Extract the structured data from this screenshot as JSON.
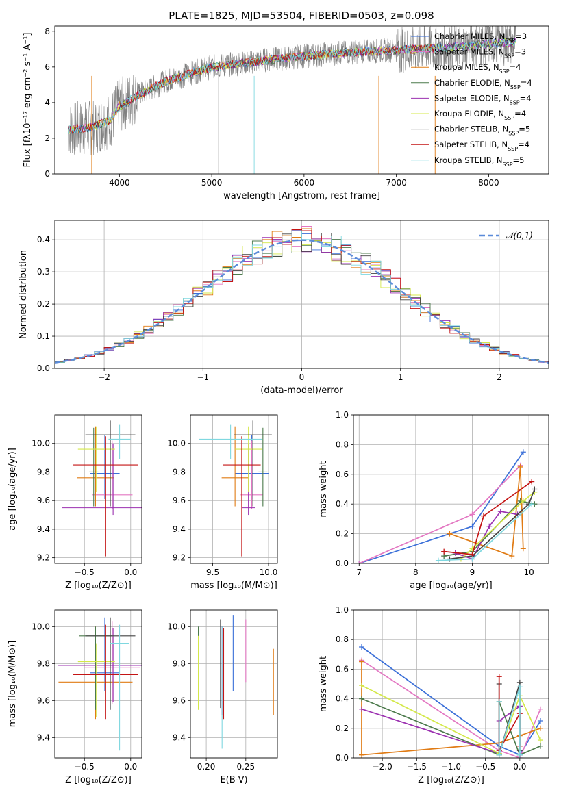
{
  "figure": {
    "title": "PLATE=1825, MJD=53504, FIBERID=0503, z=0.098"
  },
  "models": [
    {
      "name": "Chabrier MILES",
      "nssp": "3",
      "color": "#3a6fd8"
    },
    {
      "name": "Salpeter MILES",
      "nssp": "3",
      "color": "#e377c2"
    },
    {
      "name": "Kroupa MILES",
      "nssp": "4",
      "color": "#e07b14"
    },
    {
      "name": "Chabrier ELODIE",
      "nssp": "4",
      "color": "#4c7a4c"
    },
    {
      "name": "Salpeter ELODIE",
      "nssp": "4",
      "color": "#9b30b0"
    },
    {
      "name": "Kroupa ELODIE",
      "nssp": "4",
      "color": "#d4e84a"
    },
    {
      "name": "Chabrier STELIB",
      "nssp": "5",
      "color": "#444444"
    },
    {
      "name": "Salpeter STELIB",
      "nssp": "4",
      "color": "#c41414"
    },
    {
      "name": "Kroupa STELIB",
      "nssp": "5",
      "color": "#7fd8e0"
    }
  ],
  "nssp_label_prefix": "N",
  "nssp_label_sub": "SSP",
  "chart_data": [
    {
      "id": "spectrum",
      "type": "line",
      "xlabel": "wavelength [Angstrom, rest frame]",
      "ylabel": "Flux [fλ10⁻¹⁷ erg cm⁻² s⁻¹ A⁻¹]",
      "xlim": [
        3300,
        8650
      ],
      "ylim": [
        0,
        8.3
      ],
      "xticks": [
        4000,
        5000,
        6000,
        7000,
        8000
      ],
      "yticks": [
        0,
        2,
        4,
        6,
        8
      ],
      "legend": "top-right",
      "observed_continuum": [
        [
          3450,
          2.5
        ],
        [
          3700,
          2.6
        ],
        [
          3900,
          3.0
        ],
        [
          4000,
          3.8
        ],
        [
          4200,
          4.4
        ],
        [
          4500,
          5.2
        ],
        [
          4800,
          5.7
        ],
        [
          5000,
          6.0
        ],
        [
          5300,
          6.2
        ],
        [
          5600,
          6.4
        ],
        [
          6000,
          6.6
        ],
        [
          6400,
          6.8
        ],
        [
          6800,
          6.9
        ],
        [
          7200,
          7.0
        ],
        [
          7600,
          7.1
        ],
        [
          8000,
          7.3
        ],
        [
          8300,
          7.4
        ]
      ]
    },
    {
      "id": "residuals",
      "type": "bar",
      "xlabel": "(data-model)/error",
      "ylabel": "Normed distribution",
      "xlim": [
        -2.5,
        2.5
      ],
      "ylim": [
        0,
        0.46
      ],
      "xticks": [
        -2,
        -1,
        0,
        1,
        2
      ],
      "yticks": [
        0.0,
        0.1,
        0.2,
        0.3,
        0.4
      ],
      "legend": "top-right",
      "reference_curve": "𝒩(0,1)",
      "reference_color": "#5b8bd9"
    },
    {
      "id": "age-vs-Z",
      "type": "scatter",
      "xlabel": "Z [log₁₀(Z/Z⊙)]",
      "ylabel": "age  [log₁₀(age/yr)]",
      "xlim": [
        -0.82,
        0.12
      ],
      "ylim": [
        9.16,
        10.2
      ],
      "xticks": [
        -0.5,
        0.0
      ],
      "yticks": [
        9.2,
        9.4,
        9.6,
        9.8,
        10.0
      ],
      "points": [
        {
          "model": 0,
          "x": -0.28,
          "y": 9.79,
          "xerr": 0.16,
          "yerr": [
            0.18,
            0.27
          ]
        },
        {
          "model": 1,
          "x": -0.2,
          "y": 9.64,
          "xerr": 0.22,
          "yerr": [
            0.1,
            0.38
          ]
        },
        {
          "model": 2,
          "x": -0.38,
          "y": 9.76,
          "xerr": 0.2,
          "yerr": [
            0.2,
            0.36
          ]
        },
        {
          "model": 3,
          "x": -0.4,
          "y": 9.8,
          "xerr": 0.05,
          "yerr": [
            0.24,
            0.31
          ]
        },
        {
          "model": 4,
          "x": -0.19,
          "y": 9.55,
          "xerr": 0.55,
          "yerr": [
            0.05,
            0.45
          ]
        },
        {
          "model": 5,
          "x": -0.37,
          "y": 9.96,
          "xerr": 0.2,
          "yerr": [
            0.3,
            0.16
          ]
        },
        {
          "model": 6,
          "x": -0.22,
          "y": 10.06,
          "xerr": 0.27,
          "yerr": [
            0.5,
            0.1
          ]
        },
        {
          "model": 7,
          "x": -0.27,
          "y": 9.85,
          "xerr": 0.35,
          "yerr": [
            0.64,
            0.2
          ]
        },
        {
          "model": 8,
          "x": -0.12,
          "y": 10.03,
          "xerr": 0.12,
          "yerr": [
            0.14,
            0.1
          ]
        }
      ]
    },
    {
      "id": "age-vs-mass",
      "type": "scatter",
      "xlabel": "mass [log₁₀(M/M⊙)]",
      "ylabel": "",
      "xlim": [
        9.3,
        10.08
      ],
      "ylim": [
        9.16,
        10.2
      ],
      "xticks": [
        9.5,
        10.0
      ],
      "yticks": [
        9.2,
        9.4,
        9.6,
        9.8,
        10.0
      ],
      "points": [
        {
          "model": 0,
          "x": 9.85,
          "y": 9.79,
          "xerr": 0.15,
          "yerr": [
            0.18,
            0.27
          ]
        },
        {
          "model": 1,
          "x": 9.85,
          "y": 9.64,
          "xerr": 0.1,
          "yerr": [
            0.1,
            0.38
          ]
        },
        {
          "model": 2,
          "x": 9.7,
          "y": 9.76,
          "xerr": 0.12,
          "yerr": [
            0.2,
            0.36
          ]
        },
        {
          "model": 3,
          "x": 9.95,
          "y": 9.8,
          "xerr": 0.04,
          "yerr": [
            0.24,
            0.31
          ]
        },
        {
          "model": 4,
          "x": 9.82,
          "y": 9.55,
          "xerr": 0.06,
          "yerr": [
            0.05,
            0.45
          ]
        },
        {
          "model": 5,
          "x": 9.82,
          "y": 9.96,
          "xerr": 0.12,
          "yerr": [
            0.3,
            0.16
          ]
        },
        {
          "model": 6,
          "x": 9.86,
          "y": 10.06,
          "xerr": 0.17,
          "yerr": [
            0.5,
            0.1
          ]
        },
        {
          "model": 7,
          "x": 9.76,
          "y": 9.85,
          "xerr": 0.17,
          "yerr": [
            0.64,
            0.2
          ]
        },
        {
          "model": 8,
          "x": 9.66,
          "y": 10.03,
          "xerr": 0.28,
          "yerr": [
            0.14,
            0.1
          ]
        }
      ]
    },
    {
      "id": "weight-vs-age",
      "type": "line",
      "xlabel": "age  [log₁₀(age/yr)]",
      "ylabel": "mass weight",
      "xlim": [
        6.9,
        10.35
      ],
      "ylim": [
        0,
        1.0
      ],
      "xticks": [
        7,
        8,
        9,
        10
      ],
      "yticks": [
        0.0,
        0.2,
        0.4,
        0.6,
        0.8,
        1.0
      ],
      "series": [
        {
          "model": 0,
          "points": [
            [
              7.0,
              0.0
            ],
            [
              9.0,
              0.25
            ],
            [
              9.9,
              0.75
            ]
          ]
        },
        {
          "model": 1,
          "points": [
            [
              7.0,
              0.0
            ],
            [
              9.0,
              0.33
            ],
            [
              9.85,
              0.66
            ]
          ]
        },
        {
          "model": 2,
          "points": [
            [
              8.6,
              0.2
            ],
            [
              9.7,
              0.05
            ],
            [
              9.85,
              0.65
            ],
            [
              9.9,
              0.1
            ]
          ]
        },
        {
          "model": 3,
          "points": [
            [
              8.5,
              0.05
            ],
            [
              9.0,
              0.08
            ],
            [
              9.85,
              0.42
            ],
            [
              10.1,
              0.4
            ]
          ]
        },
        {
          "model": 4,
          "points": [
            [
              8.7,
              0.07
            ],
            [
              9.0,
              0.03
            ],
            [
              9.3,
              0.25
            ],
            [
              9.5,
              0.35
            ],
            [
              9.8,
              0.33
            ]
          ]
        },
        {
          "model": 5,
          "points": [
            [
              8.8,
              0.03
            ],
            [
              9.0,
              0.1
            ],
            [
              9.9,
              0.42
            ],
            [
              10.1,
              0.48
            ]
          ]
        },
        {
          "model": 6,
          "points": [
            [
              8.6,
              0.03
            ],
            [
              9.0,
              0.05
            ],
            [
              10.0,
              0.4
            ],
            [
              10.1,
              0.5
            ]
          ]
        },
        {
          "model": 7,
          "points": [
            [
              8.5,
              0.08
            ],
            [
              9.0,
              0.06
            ],
            [
              9.2,
              0.32
            ],
            [
              10.05,
              0.55
            ]
          ]
        },
        {
          "model": 8,
          "points": [
            [
              8.4,
              0.02
            ],
            [
              9.0,
              0.03
            ],
            [
              10.05,
              0.4
            ]
          ]
        }
      ]
    },
    {
      "id": "mass-vs-Z",
      "type": "scatter",
      "xlabel": "Z [log₁₀(Z/Z⊙)]",
      "ylabel": "mass [log₁₀(M/M⊙)]",
      "xlim": [
        -0.82,
        0.12
      ],
      "ylim": [
        9.29,
        10.09
      ],
      "xticks": [
        -0.5,
        0.0
      ],
      "yticks": [
        9.4,
        9.6,
        9.8,
        10.0
      ],
      "points": [
        {
          "model": 0,
          "x": -0.28,
          "y": 9.75,
          "xerr": 0.16,
          "yerr": [
            0.1,
            0.3
          ]
        },
        {
          "model": 1,
          "x": -0.2,
          "y": 9.78,
          "xerr": 0.3,
          "yerr": [
            0.2,
            0.25
          ]
        },
        {
          "model": 2,
          "x": -0.38,
          "y": 9.7,
          "xerr": 0.4,
          "yerr": [
            0.2,
            0.3
          ]
        },
        {
          "model": 3,
          "x": -0.38,
          "y": 9.95,
          "xerr": 0.18,
          "yerr": [
            0.4,
            0.05
          ]
        },
        {
          "model": 4,
          "x": -0.19,
          "y": 9.79,
          "xerr": 0.6,
          "yerr": [
            0.2,
            0.2
          ]
        },
        {
          "model": 5,
          "x": -0.37,
          "y": 9.81,
          "xerr": 0.2,
          "yerr": [
            0.3,
            0.1
          ]
        },
        {
          "model": 6,
          "x": -0.22,
          "y": 9.95,
          "xerr": 0.27,
          "yerr": [
            0.4,
            0.1
          ]
        },
        {
          "model": 7,
          "x": -0.27,
          "y": 9.74,
          "xerr": 0.35,
          "yerr": [
            0.24,
            0.27
          ]
        },
        {
          "model": 8,
          "x": -0.12,
          "y": 9.91,
          "xerr": 0.1,
          "yerr": [
            0.58,
            0.1
          ]
        }
      ]
    },
    {
      "id": "mass-vs-ebv",
      "type": "scatter",
      "xlabel": "E(B-V)",
      "ylabel": "",
      "xlim": [
        0.18,
        0.29
      ],
      "ylim": [
        9.29,
        10.09
      ],
      "xticks": [
        0.2,
        0.25
      ],
      "yticks": [
        9.4,
        9.6,
        9.8,
        10.0
      ],
      "points": [
        {
          "model": 0,
          "x": 0.234,
          "y": 9.8,
          "xerr": 0,
          "yerr": [
            0.15,
            0.26
          ]
        },
        {
          "model": 1,
          "x": 0.25,
          "y": 9.8,
          "xerr": 0,
          "yerr": [
            0.1,
            0.24
          ]
        },
        {
          "model": 2,
          "x": 0.285,
          "y": 9.7,
          "xerr": 0,
          "yerr": [
            0.18,
            0.18
          ]
        },
        {
          "model": 3,
          "x": 0.19,
          "y": 9.8,
          "xerr": 0,
          "yerr": [
            0.24,
            0.2
          ]
        },
        {
          "model": 4,
          "x": 0.22,
          "y": 9.75,
          "xerr": 0,
          "yerr": [
            0.23,
            0.25
          ]
        },
        {
          "model": 5,
          "x": 0.19,
          "y": 9.75,
          "xerr": 0,
          "yerr": [
            0.2,
            0.2
          ]
        },
        {
          "model": 6,
          "x": 0.218,
          "y": 9.8,
          "xerr": 0,
          "yerr": [
            0.24,
            0.24
          ]
        },
        {
          "model": 7,
          "x": 0.222,
          "y": 9.75,
          "xerr": 0,
          "yerr": [
            0.25,
            0.24
          ]
        },
        {
          "model": 8,
          "x": 0.22,
          "y": 9.62,
          "xerr": 0,
          "yerr": [
            0.28,
            0.38
          ]
        }
      ]
    },
    {
      "id": "weight-vs-Z",
      "type": "line",
      "xlabel": "Z [log₁₀(Z/Z⊙)]",
      "ylabel": "mass weight",
      "xlim": [
        -2.42,
        0.42
      ],
      "ylim": [
        0,
        1.0
      ],
      "xticks": [
        -2.0,
        -1.5,
        -1.0,
        -0.5,
        0.0
      ],
      "yticks": [
        0.0,
        0.2,
        0.4,
        0.6,
        0.8,
        1.0
      ],
      "series": [
        {
          "model": 0,
          "points": [
            [
              -2.3,
              0.75
            ],
            [
              -0.3,
              0.08
            ],
            [
              0.0,
              0.02
            ],
            [
              0.3,
              0.25
            ]
          ]
        },
        {
          "model": 1,
          "points": [
            [
              -2.3,
              0.66
            ],
            [
              -0.3,
              0.05
            ],
            [
              0.0,
              0.0
            ],
            [
              0.3,
              0.33
            ]
          ]
        },
        {
          "model": 2,
          "points": [
            [
              -2.3,
              0.65
            ],
            [
              -2.3,
              0.02
            ],
            [
              -0.3,
              0.1
            ],
            [
              0.0,
              0.15
            ],
            [
              0.3,
              0.2
            ]
          ]
        },
        {
          "model": 3,
          "points": [
            [
              -2.3,
              0.4
            ],
            [
              -0.3,
              0.02
            ],
            [
              -0.3,
              0.38
            ],
            [
              0.0,
              0.02
            ],
            [
              0.3,
              0.08
            ]
          ]
        },
        {
          "model": 4,
          "points": [
            [
              -2.3,
              0.33
            ],
            [
              -0.3,
              0.03
            ],
            [
              -0.3,
              0.25
            ],
            [
              0.0,
              0.35
            ]
          ]
        },
        {
          "model": 5,
          "points": [
            [
              -2.3,
              0.49
            ],
            [
              -0.3,
              0.03
            ],
            [
              0.0,
              0.42
            ],
            [
              0.3,
              0.12
            ]
          ]
        },
        {
          "model": 6,
          "points": [
            [
              -0.3,
              0.5
            ],
            [
              -0.3,
              0.02
            ],
            [
              0.0,
              0.51
            ],
            [
              0.0,
              0.05
            ]
          ]
        },
        {
          "model": 7,
          "points": [
            [
              -0.3,
              0.55
            ],
            [
              -0.3,
              0.05
            ],
            [
              0.0,
              0.3
            ],
            [
              0.0,
              0.08
            ]
          ]
        },
        {
          "model": 8,
          "points": [
            [
              -0.3,
              0.38
            ],
            [
              -0.3,
              0.02
            ],
            [
              0.0,
              0.48
            ],
            [
              0.0,
              0.02
            ]
          ]
        }
      ]
    }
  ]
}
